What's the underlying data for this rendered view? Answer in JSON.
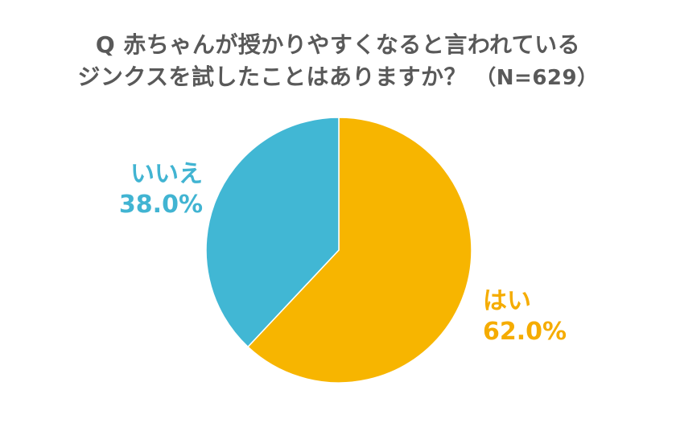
{
  "title": {
    "line1": "Q 赤ちゃんが授かりやすくなると言われている",
    "line2": "ジンクスを試したことはありますか？",
    "n_text": "（N=629）"
  },
  "colors": {
    "yes": "#f7b500",
    "no": "#41b7d4",
    "title_text": "#595959",
    "label_no": "#41b4d2",
    "label_yes": "#f5ac00"
  },
  "chart_data": {
    "type": "pie",
    "title": "Q 赤ちゃんが授かりやすくなると言われているジンクスを試したことはありますか？ （N=629）",
    "start": "12 o'clock, clockwise",
    "slices": [
      {
        "label": "はい",
        "value": 62.0,
        "display": "62.0%"
      },
      {
        "label": "いいえ",
        "value": 38.0,
        "display": "38.0%"
      }
    ]
  }
}
